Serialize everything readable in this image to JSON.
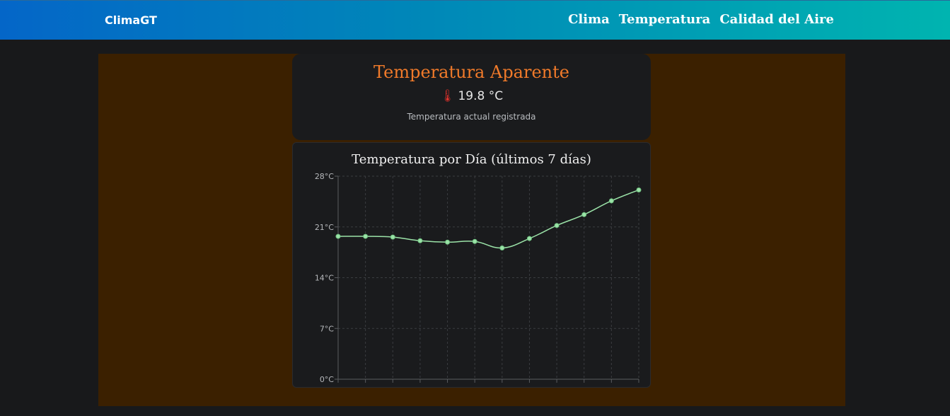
{
  "navbar": {
    "brand": "ClimaGT",
    "links": [
      "Clima",
      "Temperatura",
      "Calidad del Aire"
    ],
    "gradient": [
      "#0466c8",
      "#00b4b0"
    ]
  },
  "temperature_card": {
    "title": "Temperatura Aparente",
    "icon": "thermometer-icon",
    "value": "19.8 °C",
    "caption": "Temperatura actual registrada",
    "title_color": "#f07a2a"
  },
  "chart_card": {
    "title": "Temperatura por Día (últimos 7 días)"
  },
  "chart_data": {
    "type": "line",
    "title": "Temperatura por Día (últimos 7 días)",
    "y_ticks": [
      "0°C",
      "7°C",
      "14°C",
      "21°C",
      "28°C"
    ],
    "ylim": [
      0,
      28
    ],
    "values": [
      19.7,
      19.7,
      19.6,
      19.1,
      18.9,
      19.0,
      18.1,
      19.4,
      21.2,
      22.7,
      24.6,
      26.1
    ],
    "grid": true,
    "line_color": "#9be3a8"
  }
}
